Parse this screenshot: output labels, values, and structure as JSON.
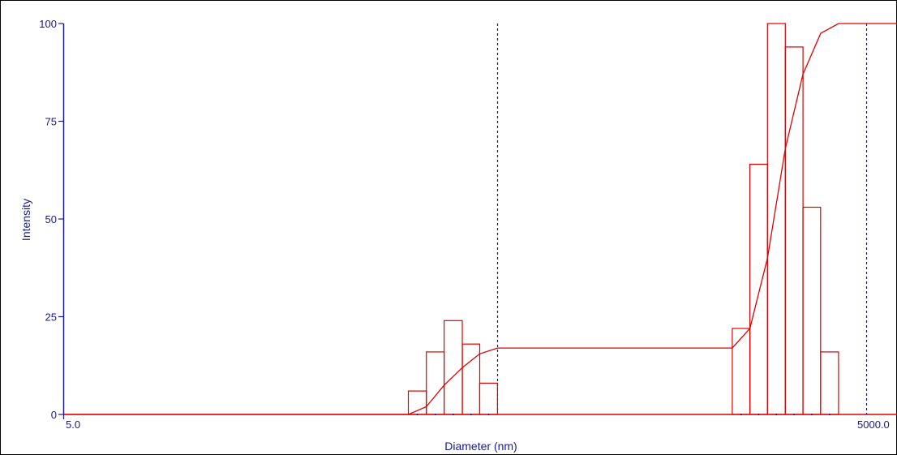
{
  "chart_data": {
    "type": "bar",
    "title": "",
    "xlabel": "Diameter (nm)",
    "ylabel": "Intensity",
    "x_scale": "log",
    "xlim": [
      5.0,
      5000.0
    ],
    "ylim": [
      0,
      100
    ],
    "x_tick_labels": [
      "5.0",
      "5000.0"
    ],
    "y_ticks": [
      0,
      25,
      50,
      75,
      100
    ],
    "y_tick_labels": [
      "0",
      "25",
      "50",
      "75",
      "100"
    ],
    "colors": {
      "bars": "#e00000",
      "cumulative": "#e00000",
      "axes": "#1a1a8c",
      "markers": "#1a1a8c",
      "baseline": "#e00000"
    },
    "histogram_bars": [
      {
        "x_lo": 87.0,
        "x_hi": 101.0,
        "value": 6
      },
      {
        "x_lo": 101.0,
        "x_hi": 117.0,
        "value": 16
      },
      {
        "x_lo": 117.0,
        "x_hi": 136.0,
        "value": 24
      },
      {
        "x_lo": 136.0,
        "x_hi": 157.0,
        "value": 18
      },
      {
        "x_lo": 157.0,
        "x_hi": 182.0,
        "value": 8
      },
      {
        "x_lo": 1270.0,
        "x_hi": 1470.0,
        "value": 22
      },
      {
        "x_lo": 1470.0,
        "x_hi": 1700.0,
        "value": 64
      },
      {
        "x_lo": 1700.0,
        "x_hi": 1970.0,
        "value": 100
      },
      {
        "x_lo": 1970.0,
        "x_hi": 2280.0,
        "value": 94
      },
      {
        "x_lo": 2280.0,
        "x_hi": 2640.0,
        "value": 53
      },
      {
        "x_lo": 2640.0,
        "x_hi": 3060.0,
        "value": 16
      }
    ],
    "cumulative_curve": {
      "x": [
        5.0,
        87.0,
        101.0,
        117.0,
        136.0,
        157.0,
        182.0,
        1270.0,
        1470.0,
        1700.0,
        1970.0,
        2280.0,
        2640.0,
        3060.0,
        5000.0
      ],
      "y": [
        0,
        0,
        2,
        7.5,
        12,
        15.5,
        17,
        17,
        22,
        40,
        68,
        87,
        97.5,
        100,
        100
      ]
    },
    "marker_lines_x": [
      182.0,
      3850.0
    ]
  }
}
